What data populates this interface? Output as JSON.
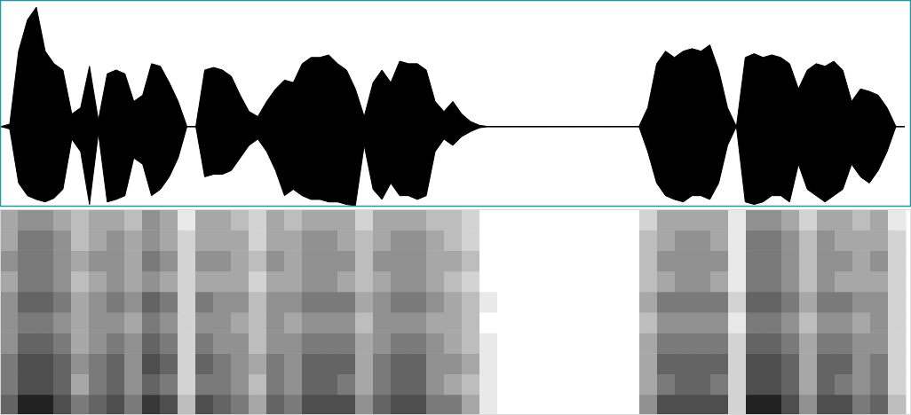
{
  "chart_data": [
    {
      "type": "area",
      "color": "#000000",
      "tick_labels": false,
      "xlim": [
        0,
        1026
      ],
      "ylim": [
        -0.63,
        1
      ],
      "x": [
        0,
        10,
        20,
        30,
        40,
        50,
        60,
        70,
        80,
        90,
        100,
        110,
        120,
        130,
        140,
        150,
        160,
        170,
        180,
        190,
        200,
        210,
        220,
        230,
        240,
        250,
        260,
        270,
        280,
        290,
        300,
        310,
        320,
        330,
        340,
        350,
        360,
        370,
        380,
        390,
        400,
        410,
        420,
        430,
        440,
        450,
        460,
        470,
        480,
        490,
        500,
        510,
        520,
        530,
        540,
        550,
        560,
        570,
        580,
        590,
        600,
        610,
        620,
        630,
        640,
        650,
        660,
        670,
        680,
        690,
        700,
        710,
        720,
        730,
        740,
        750,
        760,
        770,
        780,
        790,
        800,
        810,
        820,
        830,
        840,
        850,
        860,
        870,
        880,
        890,
        900,
        910,
        920,
        930,
        940,
        950,
        960,
        970,
        980,
        990,
        1000,
        1010,
        1020
      ],
      "series": [
        {
          "values": [
            0,
            0.02,
            0.6,
            0.85,
            0.95,
            0.6,
            0.5,
            0.45,
            0.1,
            0.15,
            0.48,
            0.05,
            0.42,
            0.45,
            0.42,
            0.2,
            0.25,
            0.5,
            0.48,
            0.35,
            0.2,
            0,
            0,
            0.45,
            0.47,
            0.45,
            0.4,
            0.25,
            0.12,
            0.08,
            0.2,
            0.3,
            0.37,
            0.35,
            0.5,
            0.55,
            0.55,
            0.57,
            0.5,
            0.45,
            0.3,
            0.08,
            0.35,
            0.45,
            0.35,
            0.52,
            0.5,
            0.5,
            0.45,
            0.2,
            0.12,
            0.2,
            0.1,
            0.04,
            0.01,
            0,
            0,
            0,
            0,
            0,
            0,
            0,
            0,
            0,
            0,
            0,
            0,
            0,
            0,
            0,
            0,
            0,
            0,
            0.15,
            0.5,
            0.6,
            0.55,
            0.6,
            0.62,
            0.6,
            0.65,
            0.45,
            0.15,
            0,
            0.55,
            0.58,
            0.55,
            0.57,
            0.55,
            0.5,
            0.3,
            0.45,
            0.5,
            0.48,
            0.52,
            0.45,
            0.2,
            0.3,
            0.28,
            0.25,
            0.15,
            0,
            0
          ]
        },
        {
          "values": [
            0,
            -0.02,
            -0.45,
            -0.55,
            -0.58,
            -0.6,
            -0.57,
            -0.5,
            -0.1,
            -0.2,
            -0.62,
            -0.05,
            -0.6,
            -0.58,
            -0.55,
            -0.25,
            -0.3,
            -0.55,
            -0.5,
            -0.4,
            -0.25,
            0,
            0,
            -0.4,
            -0.38,
            -0.38,
            -0.35,
            -0.25,
            -0.15,
            -0.1,
            -0.2,
            -0.35,
            -0.55,
            -0.5,
            -0.55,
            -0.58,
            -0.58,
            -0.6,
            -0.6,
            -0.62,
            -0.63,
            -0.15,
            -0.5,
            -0.58,
            -0.45,
            -0.55,
            -0.55,
            -0.58,
            -0.55,
            -0.2,
            -0.1,
            -0.15,
            -0.08,
            -0.04,
            -0.01,
            0,
            0,
            0,
            0,
            0,
            0,
            0,
            0,
            0,
            0,
            0,
            0,
            0,
            0,
            0,
            0,
            0,
            0,
            -0.2,
            -0.45,
            -0.55,
            -0.58,
            -0.6,
            -0.55,
            -0.55,
            -0.58,
            -0.45,
            -0.15,
            0,
            -0.6,
            -0.62,
            -0.6,
            -0.55,
            -0.55,
            -0.6,
            -0.3,
            -0.5,
            -0.55,
            -0.6,
            -0.55,
            -0.5,
            -0.3,
            -0.4,
            -0.45,
            -0.35,
            -0.2,
            0,
            0
          ]
        }
      ]
    },
    {
      "type": "heatmap",
      "color": "#222222",
      "tick_labels": false,
      "xlim": [
        0,
        1026
      ],
      "ylim": [
        0,
        5
      ],
      "zlim": [
        0,
        1
      ],
      "x": [
        0,
        20,
        40,
        60,
        80,
        100,
        120,
        140,
        160,
        180,
        200,
        220,
        240,
        260,
        280,
        300,
        320,
        340,
        360,
        380,
        400,
        420,
        440,
        460,
        480,
        500,
        520,
        540,
        560,
        580,
        600,
        620,
        640,
        660,
        680,
        700,
        720,
        740,
        760,
        780,
        800,
        820,
        840,
        860,
        880,
        900,
        920,
        940,
        960,
        980,
        1000,
        1020
      ],
      "y": [
        0,
        0.5,
        1,
        1.5,
        2,
        2.5,
        3,
        3.5,
        4,
        4.5,
        5
      ],
      "cells": [
        [
          0.7,
          1.0,
          1.0,
          0.8,
          0.6,
          0.7,
          0.8,
          0.6,
          0.9,
          0.8,
          0.3,
          0.8,
          0.7,
          0.6,
          0.4,
          0.7,
          0.6,
          0.8,
          0.8,
          0.8,
          0.5,
          0.7,
          0.8,
          0.8,
          0.6,
          0.6,
          0.4,
          0.1,
          0,
          0,
          0,
          0,
          0,
          0,
          0,
          0,
          0.5,
          0.8,
          0.8,
          0.8,
          0.8,
          0.2,
          1.0,
          1.0,
          0.8,
          0.5,
          0.8,
          0.8,
          0.6,
          0.7,
          0.3
        ],
        [
          0.6,
          0.8,
          0.8,
          0.7,
          0.4,
          0.6,
          0.7,
          0.5,
          0.7,
          0.6,
          0.2,
          0.6,
          0.6,
          0.5,
          0.3,
          0.6,
          0.5,
          0.7,
          0.7,
          0.6,
          0.4,
          0.6,
          0.7,
          0.7,
          0.5,
          0.4,
          0.3,
          0.1,
          0,
          0,
          0,
          0,
          0,
          0,
          0,
          0,
          0.4,
          0.6,
          0.7,
          0.7,
          0.6,
          0.2,
          0.8,
          0.8,
          0.7,
          0.4,
          0.7,
          0.6,
          0.5,
          0.6,
          0.2
        ],
        [
          0.6,
          0.8,
          0.8,
          0.7,
          0.5,
          0.6,
          0.7,
          0.5,
          0.8,
          0.7,
          0.2,
          0.7,
          0.6,
          0.5,
          0.4,
          0.6,
          0.5,
          0.7,
          0.7,
          0.7,
          0.4,
          0.6,
          0.7,
          0.7,
          0.5,
          0.5,
          0.4,
          0.1,
          0,
          0,
          0,
          0,
          0,
          0,
          0,
          0,
          0.4,
          0.7,
          0.7,
          0.7,
          0.7,
          0.2,
          0.8,
          0.8,
          0.7,
          0.4,
          0.7,
          0.7,
          0.5,
          0.6,
          0.2
        ],
        [
          0.5,
          0.7,
          0.7,
          0.6,
          0.4,
          0.5,
          0.6,
          0.5,
          0.7,
          0.6,
          0.2,
          0.6,
          0.5,
          0.5,
          0.3,
          0.5,
          0.5,
          0.6,
          0.6,
          0.6,
          0.4,
          0.5,
          0.6,
          0.6,
          0.5,
          0.4,
          0.3,
          0.1,
          0,
          0,
          0,
          0,
          0,
          0,
          0,
          0,
          0.4,
          0.6,
          0.6,
          0.6,
          0.6,
          0.2,
          0.7,
          0.7,
          0.6,
          0.4,
          0.6,
          0.6,
          0.5,
          0.5,
          0.2
        ],
        [
          0.5,
          0.6,
          0.6,
          0.5,
          0.4,
          0.5,
          0.5,
          0.4,
          0.6,
          0.5,
          0.2,
          0.5,
          0.5,
          0.4,
          0.3,
          0.5,
          0.4,
          0.5,
          0.5,
          0.5,
          0.3,
          0.5,
          0.5,
          0.5,
          0.4,
          0.4,
          0.3,
          0,
          0,
          0,
          0,
          0,
          0,
          0,
          0,
          0,
          0.3,
          0.5,
          0.5,
          0.5,
          0.5,
          0.1,
          0.6,
          0.6,
          0.5,
          0.3,
          0.5,
          0.5,
          0.4,
          0.5,
          0.2
        ],
        [
          0.5,
          0.7,
          0.7,
          0.6,
          0.4,
          0.5,
          0.6,
          0.5,
          0.7,
          0.6,
          0.2,
          0.6,
          0.5,
          0.5,
          0.3,
          0.5,
          0.5,
          0.6,
          0.6,
          0.6,
          0.4,
          0.5,
          0.6,
          0.6,
          0.5,
          0.4,
          0.3,
          0.1,
          0,
          0,
          0,
          0,
          0,
          0,
          0,
          0,
          0.4,
          0.6,
          0.6,
          0.6,
          0.6,
          0.2,
          0.7,
          0.7,
          0.6,
          0.4,
          0.6,
          0.6,
          0.5,
          0.5,
          0.2
        ],
        [
          0.4,
          0.6,
          0.6,
          0.5,
          0.3,
          0.4,
          0.5,
          0.4,
          0.5,
          0.4,
          0.2,
          0.4,
          0.4,
          0.4,
          0.2,
          0.4,
          0.4,
          0.5,
          0.5,
          0.4,
          0.3,
          0.4,
          0.5,
          0.5,
          0.4,
          0.3,
          0.2,
          0,
          0,
          0,
          0,
          0,
          0,
          0,
          0,
          0,
          0.3,
          0.4,
          0.5,
          0.5,
          0.4,
          0.1,
          0.6,
          0.6,
          0.5,
          0.3,
          0.5,
          0.4,
          0.4,
          0.4,
          0.2
        ],
        [
          0.5,
          0.6,
          0.6,
          0.5,
          0.4,
          0.5,
          0.5,
          0.4,
          0.6,
          0.5,
          0.2,
          0.5,
          0.5,
          0.4,
          0.3,
          0.5,
          0.4,
          0.5,
          0.5,
          0.5,
          0.3,
          0.5,
          0.5,
          0.5,
          0.4,
          0.4,
          0.3,
          0,
          0,
          0,
          0,
          0,
          0,
          0,
          0,
          0,
          0.3,
          0.5,
          0.5,
          0.5,
          0.5,
          0.1,
          0.6,
          0.6,
          0.5,
          0.3,
          0.5,
          0.5,
          0.4,
          0.5,
          0.2
        ],
        [
          0.4,
          0.6,
          0.6,
          0.5,
          0.3,
          0.4,
          0.5,
          0.4,
          0.5,
          0.4,
          0.2,
          0.4,
          0.4,
          0.4,
          0.2,
          0.4,
          0.4,
          0.5,
          0.5,
          0.4,
          0.3,
          0.4,
          0.5,
          0.5,
          0.4,
          0.3,
          0.2,
          0,
          0,
          0,
          0,
          0,
          0,
          0,
          0,
          0,
          0.3,
          0.4,
          0.5,
          0.5,
          0.4,
          0.1,
          0.6,
          0.6,
          0.5,
          0.3,
          0.5,
          0.4,
          0.4,
          0.4,
          0.2
        ],
        [
          0.4,
          0.5,
          0.5,
          0.4,
          0.3,
          0.4,
          0.4,
          0.3,
          0.5,
          0.4,
          0.1,
          0.4,
          0.4,
          0.3,
          0.2,
          0.4,
          0.3,
          0.4,
          0.4,
          0.4,
          0.2,
          0.4,
          0.4,
          0.4,
          0.3,
          0.3,
          0.2,
          0,
          0,
          0,
          0,
          0,
          0,
          0,
          0,
          0,
          0.2,
          0.4,
          0.4,
          0.4,
          0.4,
          0.1,
          0.5,
          0.5,
          0.4,
          0.2,
          0.4,
          0.4,
          0.3,
          0.4,
          0.1
        ]
      ]
    }
  ]
}
